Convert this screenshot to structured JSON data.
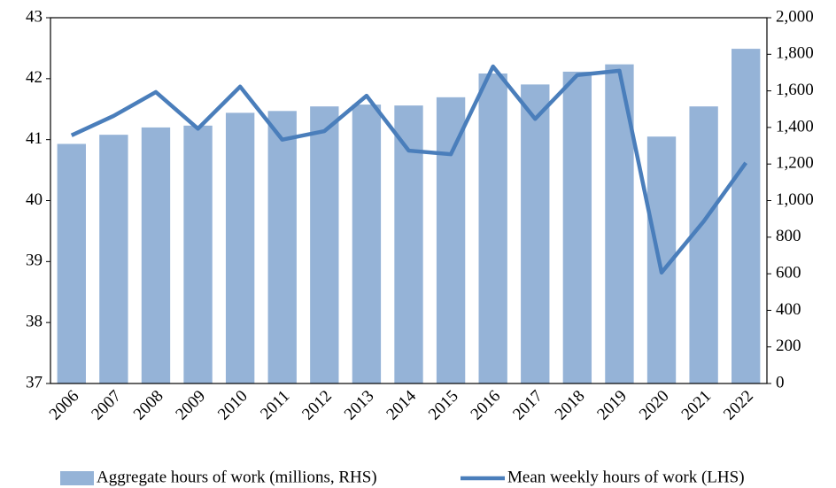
{
  "chart_data": {
    "type": "bar-line",
    "categories": [
      "2006",
      "2007",
      "2008",
      "2009",
      "2010",
      "2011",
      "2012",
      "2013",
      "2014",
      "2015",
      "2016",
      "2017",
      "2018",
      "2019",
      "2020",
      "2021",
      "2022"
    ],
    "series": [
      {
        "name": "Aggregate hours of work (millions, RHS)",
        "type": "bar",
        "axis": "y2",
        "color": "#95b3d7",
        "values": [
          1310,
          1360,
          1400,
          1410,
          1480,
          1490,
          1515,
          1525,
          1520,
          1565,
          1695,
          1635,
          1705,
          1745,
          1350,
          1515,
          1830
        ]
      },
      {
        "name": "Mean weekly hours of work (LHS)",
        "type": "line",
        "color": "#4a7ebb",
        "values": [
          41.07,
          41.39,
          41.78,
          41.18,
          41.87,
          41.0,
          41.14,
          41.72,
          40.82,
          40.76,
          42.2,
          41.34,
          42.06,
          42.13,
          38.82,
          39.66,
          40.62
        ]
      }
    ],
    "ylim": [
      37,
      43
    ],
    "yticks": [
      37,
      38,
      39,
      40,
      41,
      42,
      43
    ],
    "y2lim": [
      0,
      2000
    ],
    "y2ticks": [
      0,
      200,
      400,
      600,
      800,
      {
        "value": 1000,
        "label": "1,000"
      },
      {
        "value": 1200,
        "label": "1,200"
      },
      {
        "value": 1400,
        "label": "1,400"
      },
      {
        "value": 1600,
        "label": "1,600"
      },
      {
        "value": 1800,
        "label": "1,800"
      },
      {
        "value": 2000,
        "label": "2,000"
      }
    ],
    "grid": false,
    "legend": "bottom"
  }
}
